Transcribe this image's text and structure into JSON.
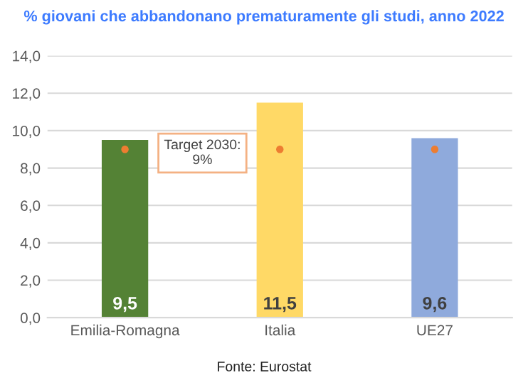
{
  "chart_data": {
    "type": "bar",
    "title": "% giovani che abbandonano prematuramente gli studi, anno 2022",
    "categories": [
      "Emilia-Romagna",
      "Italia",
      "UE27"
    ],
    "series": [
      {
        "values": [
          9.5,
          11.5,
          9.6
        ],
        "colors": [
          "#548235",
          "#ffd966",
          "#8faadc"
        ],
        "value_labels": [
          "9,5",
          "11,5",
          "9,6"
        ]
      },
      {
        "type": "scatter",
        "x": [
          "Emilia-Romagna",
          "Italia",
          "UE27"
        ],
        "values": [
          9,
          9,
          9
        ],
        "color": "#ed7d31",
        "marker": "circle"
      }
    ],
    "ylim": [
      0,
      14
    ],
    "yticks": [
      {
        "value": 0,
        "label": "0,0"
      },
      {
        "value": 2,
        "label": "2,0"
      },
      {
        "value": 4,
        "label": "4,0"
      },
      {
        "value": 6,
        "label": "6,0"
      },
      {
        "value": 8,
        "label": "8,0"
      },
      {
        "value": 10,
        "label": "10,0"
      },
      {
        "value": 12,
        "label": "12,0"
      },
      {
        "value": 14,
        "label": "14,0"
      }
    ],
    "grid": "y",
    "annotations": [
      "Target 2030:\n9%",
      "Fonte: Eurostat"
    ]
  }
}
